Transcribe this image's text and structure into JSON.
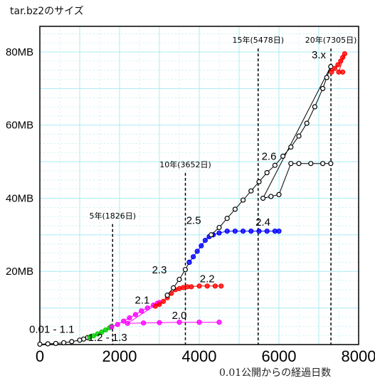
{
  "chart_data": {
    "type": "scatter",
    "title": "tar.bz2のサイズ",
    "xlabel": "0.01公開からの経過日数",
    "ylabel": "",
    "xlim": [
      0,
      8000
    ],
    "ylim": [
      0,
      87
    ],
    "x_ticks": [
      {
        "value": 0,
        "label": "0"
      },
      {
        "value": 2000,
        "label": "2000"
      },
      {
        "value": 4000,
        "label": "4000"
      },
      {
        "value": 6000,
        "label": "6000"
      },
      {
        "value": 8000,
        "label": "8000"
      }
    ],
    "y_ticks": [
      {
        "value": 20,
        "label": "20MB"
      },
      {
        "value": 40,
        "label": "40MB"
      },
      {
        "value": 60,
        "label": "60MB"
      },
      {
        "value": 80,
        "label": "80MB"
      }
    ],
    "grid": true,
    "vertical_markers": [
      {
        "x": 1826,
        "label": "5年(1826日)"
      },
      {
        "x": 3652,
        "label": "10年(3652日)"
      },
      {
        "x": 5478,
        "label": "15年(5478日)"
      },
      {
        "x": 7305,
        "label": "20年(7305日)"
      }
    ],
    "series": [
      {
        "name": "0.01 - 1.1",
        "color": "#000000",
        "points": [
          [
            0,
            0.1
          ],
          [
            200,
            0.2
          ],
          [
            400,
            0.3
          ],
          [
            600,
            0.5
          ],
          [
            800,
            0.8
          ],
          [
            1000,
            1.2
          ],
          [
            1100,
            1.5
          ],
          [
            1200,
            1.9
          ]
        ],
        "label": {
          "x": 300,
          "y": 3.2
        }
      },
      {
        "name": "1.2 - 1.3",
        "color": "#00cc00",
        "points": [
          [
            1250,
            2.0
          ],
          [
            1350,
            2.4
          ],
          [
            1450,
            2.9
          ],
          [
            1550,
            3.4
          ],
          [
            1650,
            4.0
          ],
          [
            1750,
            4.6
          ],
          [
            1800,
            5.0
          ]
        ],
        "label": {
          "x": 1700,
          "y": 1.0
        }
      },
      {
        "name": "2.0",
        "color": "#ff00ff",
        "points": [
          [
            1800,
            4.8
          ],
          [
            1950,
            5.5
          ],
          [
            2100,
            6.4
          ],
          [
            2250,
            7.3
          ],
          [
            2400,
            8.2
          ],
          [
            2550,
            9.2
          ],
          [
            2700,
            10.0
          ],
          [
            2850,
            10.8
          ],
          [
            2950,
            11.3
          ],
          [
            3000,
            11.5
          ],
          [
            2200,
            5.8
          ],
          [
            2600,
            5.9
          ],
          [
            3000,
            6.0
          ],
          [
            3500,
            6.1
          ],
          [
            4000,
            6.1
          ],
          [
            4500,
            6.1
          ]
        ],
        "label": {
          "x": 3500,
          "y": 7.0
        }
      },
      {
        "name": "2.2",
        "color": "#ff0000",
        "points": [
          [
            2900,
            10.5
          ],
          [
            3000,
            11.0
          ],
          [
            3100,
            11.8
          ],
          [
            3200,
            12.8
          ],
          [
            3300,
            14.0
          ],
          [
            3400,
            15.0
          ],
          [
            3500,
            15.3
          ],
          [
            3600,
            15.6
          ],
          [
            3700,
            15.8
          ],
          [
            3800,
            15.8
          ],
          [
            4000,
            16.0
          ],
          [
            4200,
            16.0
          ],
          [
            4400,
            16.0
          ],
          [
            4550,
            16.0
          ]
        ],
        "label": {
          "x": 4200,
          "y": 17.0
        }
      },
      {
        "name": "2.1",
        "color": "#ff0000",
        "points": [],
        "label": {
          "x": 2570,
          "y": 11.2
        }
      },
      {
        "name": "2.3",
        "color": "#000000",
        "points": [
          [
            3200,
            13.5
          ],
          [
            3350,
            15.5
          ],
          [
            3500,
            17.8
          ],
          [
            3650,
            20.5
          ],
          [
            3750,
            22.5
          ]
        ],
        "label": {
          "x": 3000,
          "y": 19.5
        }
      },
      {
        "name": "2.4",
        "color": "#0000ff",
        "points": [
          [
            3750,
            22.5
          ],
          [
            3850,
            24.0
          ],
          [
            3950,
            25.5
          ],
          [
            4050,
            27.0
          ],
          [
            4150,
            28.5
          ],
          [
            4250,
            29.5
          ],
          [
            4350,
            30.0
          ],
          [
            4500,
            30.5
          ],
          [
            4700,
            31.0
          ],
          [
            4900,
            31.0
          ],
          [
            5100,
            31.0
          ],
          [
            5300,
            31.0
          ],
          [
            5500,
            31.0
          ],
          [
            5700,
            31.0
          ],
          [
            5900,
            31.0
          ],
          [
            6000,
            31.0
          ]
        ],
        "label": {
          "x": 5600,
          "y": 32.5
        }
      },
      {
        "name": "2.5",
        "color": "#000000",
        "points": [],
        "label": {
          "x": 3860,
          "y": 33.0
        }
      },
      {
        "name": "2.6",
        "color": "#000000",
        "points": [
          [
            4300,
            30.0
          ],
          [
            4500,
            32.0
          ],
          [
            4700,
            34.5
          ],
          [
            4900,
            37.0
          ],
          [
            5100,
            39.5
          ],
          [
            5300,
            42.0
          ],
          [
            5500,
            44.5
          ],
          [
            5700,
            47.0
          ],
          [
            5900,
            49.0
          ],
          [
            6100,
            51.5
          ],
          [
            6300,
            54.0
          ],
          [
            6500,
            57.0
          ],
          [
            6700,
            60.5
          ],
          [
            6900,
            65.0
          ],
          [
            7100,
            70.0
          ],
          [
            7200,
            73.0
          ],
          [
            7300,
            76.0
          ],
          [
            5600,
            40.0
          ],
          [
            5800,
            40.5
          ],
          [
            6000,
            41.0
          ],
          [
            6300,
            49.5
          ],
          [
            6500,
            49.5
          ],
          [
            6800,
            49.5
          ],
          [
            7100,
            49.5
          ],
          [
            7300,
            49.5
          ]
        ],
        "label": {
          "x": 5750,
          "y": 50.5
        }
      },
      {
        "name": "3.x",
        "color": "#ff0000",
        "points": [
          [
            7320,
            74.5
          ],
          [
            7400,
            75.5
          ],
          [
            7480,
            76.5
          ],
          [
            7550,
            77.5
          ],
          [
            7600,
            78.5
          ],
          [
            7650,
            79.5
          ],
          [
            7500,
            74.5
          ],
          [
            7600,
            74.5
          ]
        ],
        "label": {
          "x": 7000,
          "y": 78.2
        }
      }
    ]
  }
}
